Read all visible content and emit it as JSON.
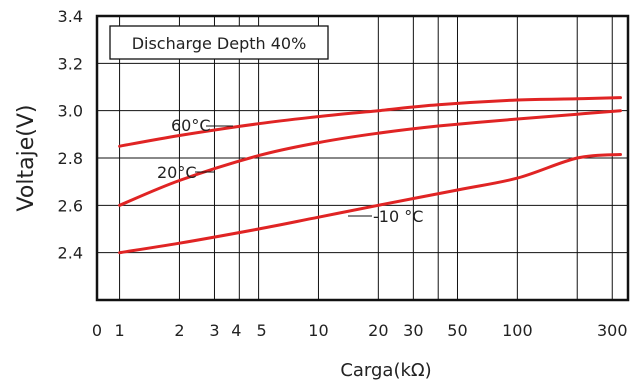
{
  "chart_data": {
    "type": "line",
    "title": "",
    "xlabel": "Carga(kΩ)",
    "ylabel": "Voltaje(V)",
    "x_scale": "log",
    "xlim": [
      0.77,
      360
    ],
    "ylim": [
      2.2,
      3.4
    ],
    "x_tick_labels": [
      "0",
      "1",
      "2",
      "3",
      "4",
      "5",
      "10",
      "20",
      "30",
      "50",
      "100",
      "300"
    ],
    "y_tick_labels": [
      "2.4",
      "2.6",
      "2.8",
      "3.0",
      "3.2",
      "3.4"
    ],
    "grid": true,
    "legend": "none",
    "annotation_box": "Discharge Depth 40%",
    "line_color": "#e02424",
    "series": [
      {
        "name": "60°C",
        "x": [
          1,
          2,
          5,
          10,
          20,
          40,
          100,
          200,
          330
        ],
        "values": [
          2.85,
          2.895,
          2.945,
          2.975,
          3.0,
          3.025,
          3.045,
          3.05,
          3.055
        ]
      },
      {
        "name": "20°C",
        "x": [
          1,
          2,
          5,
          10,
          20,
          40,
          100,
          200,
          330
        ],
        "values": [
          2.6,
          2.705,
          2.81,
          2.865,
          2.905,
          2.935,
          2.965,
          2.985,
          3.0
        ]
      },
      {
        "name": "-10 °C",
        "x": [
          1,
          2,
          5,
          10,
          20,
          50,
          100,
          200,
          330
        ],
        "values": [
          2.4,
          2.44,
          2.5,
          2.55,
          2.6,
          2.665,
          2.715,
          2.8,
          2.815
        ]
      }
    ]
  }
}
